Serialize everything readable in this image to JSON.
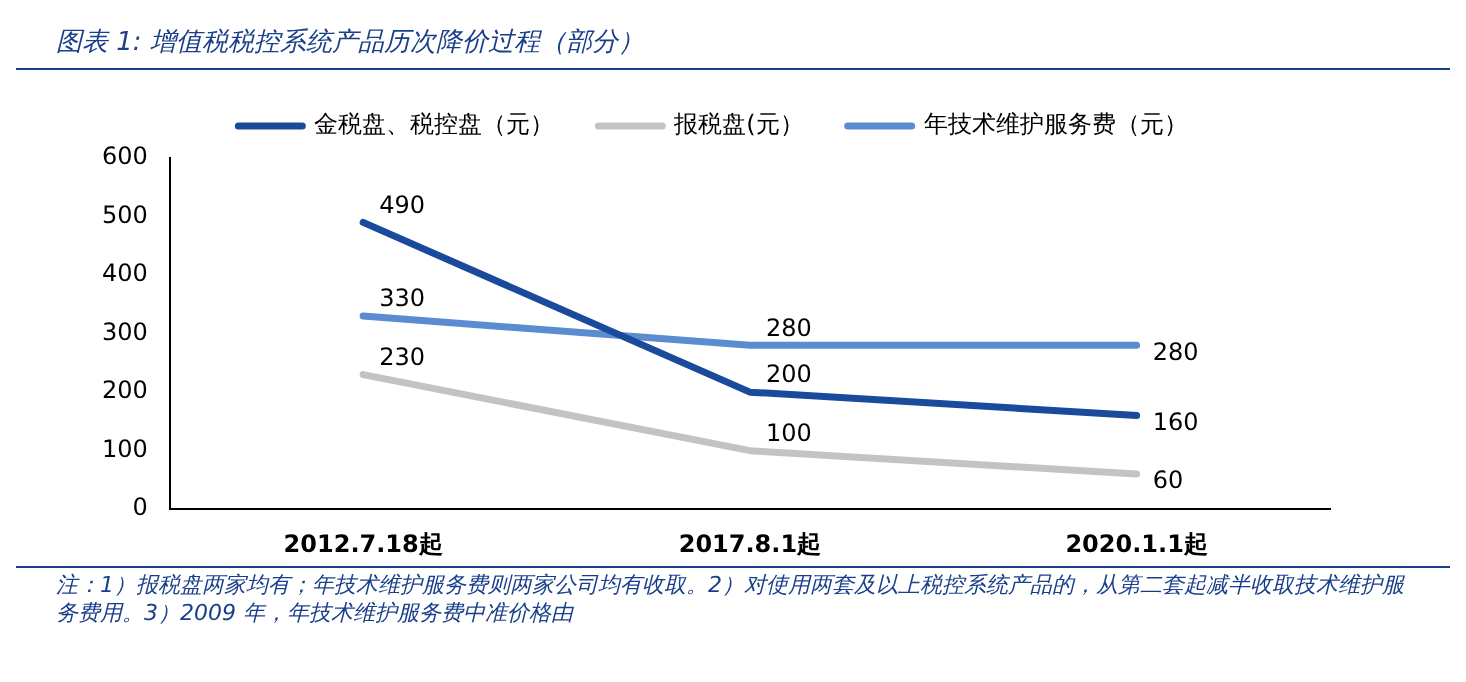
{
  "chart_data": {
    "type": "line",
    "title": "图表 1:  增值税税控系统产品历次降价过程（部分）",
    "categories": [
      "2012.7.18起",
      "2017.8.1起",
      "2020.1.1起"
    ],
    "series": [
      {
        "name": "金税盘、税控盘（元）",
        "color": "#1a4a9c",
        "values": [
          490,
          200,
          160
        ]
      },
      {
        "name": "报税盘(元）",
        "color": "#c3c3c3",
        "values": [
          230,
          100,
          60
        ]
      },
      {
        "name": "年技术维护服务费（元）",
        "color": "#5b8bd0",
        "values": [
          330,
          280,
          280
        ]
      }
    ],
    "ylim": [
      0,
      600
    ],
    "yticks": [
      0,
      100,
      200,
      300,
      400,
      500,
      600
    ],
    "grid": false,
    "legend": "top",
    "marker": "none",
    "data_labels": true,
    "annotations": [
      "注：1）报税盘两家均有；年技术维护服务费则两家公司均有收取。2）对使用两套及以上税控系统产品的，从第二套起减半收取技术维护服务费用。3）2009 年，年技术维护服务费中准价格由"
    ]
  }
}
